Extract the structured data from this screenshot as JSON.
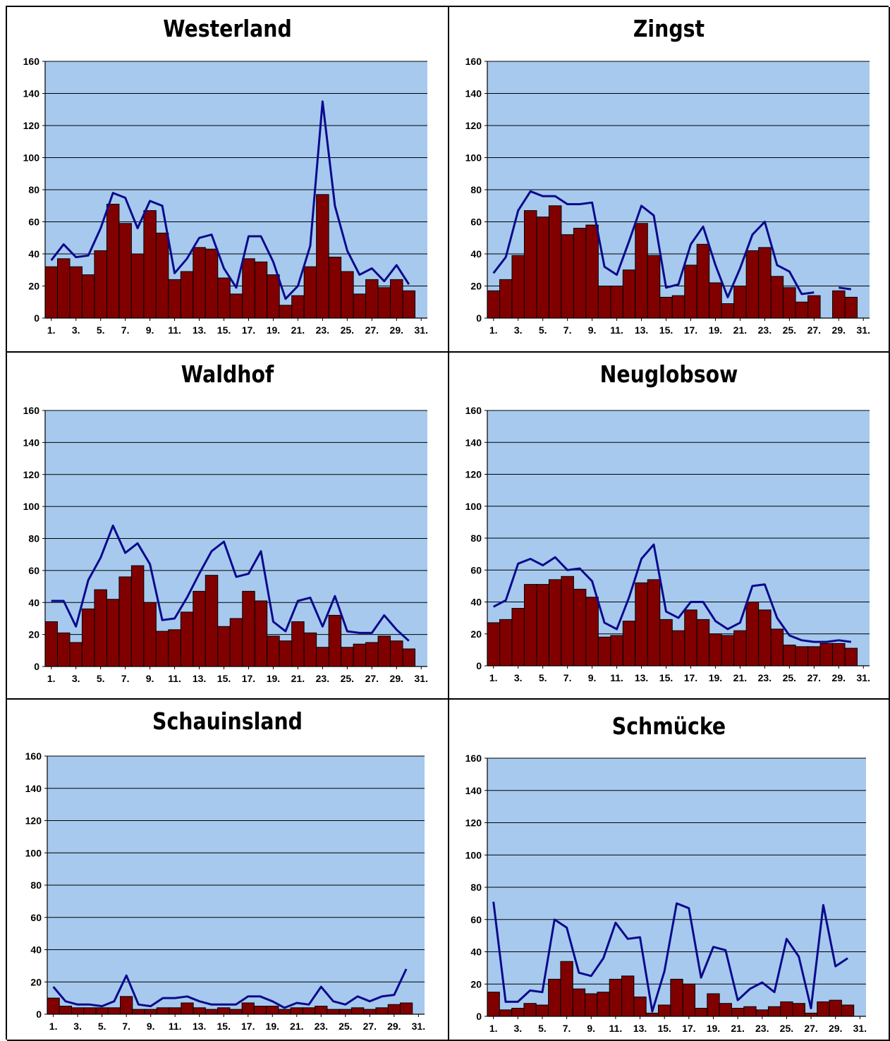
{
  "colors": {
    "plot_bg": "#a7c9ee",
    "bar": "#800000",
    "line": "#0a0a8c",
    "grid": "#000000"
  },
  "chart_data": [
    {
      "type": "bar",
      "title": "Westerland",
      "ylim": [
        0,
        160
      ],
      "yticks": [
        "0",
        "20",
        "40",
        "60",
        "80",
        "100",
        "120",
        "140",
        "160"
      ],
      "xticks": [
        "1.",
        "3.",
        "5.",
        "7.",
        "9.",
        "11.",
        "13.",
        "15.",
        "17.",
        "19.",
        "21.",
        "23.",
        "25.",
        "27.",
        "29.",
        "31."
      ],
      "grid": true,
      "legend": "none",
      "x": [
        1,
        2,
        3,
        4,
        5,
        6,
        7,
        8,
        9,
        10,
        11,
        12,
        13,
        14,
        15,
        16,
        17,
        18,
        19,
        20,
        21,
        22,
        23,
        24,
        25,
        26,
        27,
        28,
        29,
        30,
        31
      ],
      "series": [
        {
          "kind": "bar",
          "values": [
            32,
            37,
            32,
            27,
            42,
            71,
            59,
            40,
            67,
            53,
            24,
            29,
            44,
            43,
            25,
            15,
            37,
            35,
            27,
            8,
            14,
            32,
            77,
            38,
            29,
            15,
            24,
            19,
            24,
            17,
            null
          ]
        },
        {
          "kind": "line",
          "values": [
            36,
            46,
            38,
            39,
            56,
            78,
            75,
            56,
            73,
            70,
            28,
            37,
            50,
            52,
            31,
            19,
            51,
            51,
            35,
            12,
            20,
            45,
            135,
            70,
            42,
            27,
            31,
            23,
            33,
            21,
            null
          ]
        }
      ]
    },
    {
      "type": "bar",
      "title": "Zingst",
      "ylim": [
        0,
        160
      ],
      "yticks": [
        "0",
        "20",
        "40",
        "60",
        "80",
        "100",
        "120",
        "140",
        "160"
      ],
      "xticks": [
        "1.",
        "3.",
        "5.",
        "7.",
        "9.",
        "11.",
        "13.",
        "15.",
        "17.",
        "19.",
        "21.",
        "23.",
        "25.",
        "27.",
        "29.",
        "31."
      ],
      "grid": true,
      "legend": "none",
      "x": [
        1,
        2,
        3,
        4,
        5,
        6,
        7,
        8,
        9,
        10,
        11,
        12,
        13,
        14,
        15,
        16,
        17,
        18,
        19,
        20,
        21,
        22,
        23,
        24,
        25,
        26,
        27,
        28,
        29,
        30,
        31
      ],
      "series": [
        {
          "kind": "bar",
          "values": [
            17,
            24,
            39,
            67,
            63,
            70,
            52,
            56,
            58,
            20,
            20,
            30,
            59,
            39,
            13,
            14,
            33,
            46,
            22,
            9,
            20,
            42,
            44,
            26,
            19,
            10,
            14,
            null,
            17,
            13,
            null
          ]
        },
        {
          "kind": "line",
          "values": [
            28,
            38,
            67,
            79,
            76,
            76,
            71,
            71,
            72,
            32,
            27,
            48,
            70,
            64,
            19,
            21,
            46,
            57,
            33,
            13,
            31,
            52,
            60,
            33,
            29,
            15,
            16,
            null,
            19,
            18,
            null
          ]
        }
      ]
    },
    {
      "type": "bar",
      "title": "Waldhof",
      "ylim": [
        0,
        160
      ],
      "yticks": [
        "0",
        "20",
        "40",
        "60",
        "80",
        "100",
        "120",
        "140",
        "160"
      ],
      "xticks": [
        "1.",
        "3.",
        "5.",
        "7.",
        "9.",
        "11.",
        "13.",
        "15.",
        "17.",
        "19.",
        "21.",
        "23.",
        "25.",
        "27.",
        "29.",
        "31."
      ],
      "grid": true,
      "legend": "none",
      "x": [
        1,
        2,
        3,
        4,
        5,
        6,
        7,
        8,
        9,
        10,
        11,
        12,
        13,
        14,
        15,
        16,
        17,
        18,
        19,
        20,
        21,
        22,
        23,
        24,
        25,
        26,
        27,
        28,
        29,
        30,
        31
      ],
      "series": [
        {
          "kind": "bar",
          "values": [
            28,
            21,
            15,
            36,
            48,
            42,
            56,
            63,
            40,
            22,
            23,
            34,
            47,
            57,
            25,
            30,
            47,
            41,
            19,
            16,
            28,
            21,
            12,
            32,
            12,
            14,
            15,
            19,
            16,
            11,
            null
          ]
        },
        {
          "kind": "line",
          "values": [
            41,
            41,
            25,
            54,
            68,
            88,
            71,
            77,
            64,
            29,
            30,
            43,
            58,
            72,
            78,
            56,
            58,
            72,
            28,
            22,
            41,
            43,
            25,
            44,
            22,
            21,
            21,
            32,
            23,
            16,
            null
          ]
        }
      ]
    },
    {
      "type": "bar",
      "title": "Neuglobsow",
      "ylim": [
        0,
        160
      ],
      "yticks": [
        "0",
        "20",
        "40",
        "60",
        "80",
        "100",
        "120",
        "140",
        "160"
      ],
      "xticks": [
        "1.",
        "3.",
        "5.",
        "7.",
        "9.",
        "11.",
        "13.",
        "15.",
        "17.",
        "19.",
        "21.",
        "23.",
        "25.",
        "27.",
        "29.",
        "31."
      ],
      "grid": true,
      "legend": "none",
      "x": [
        1,
        2,
        3,
        4,
        5,
        6,
        7,
        8,
        9,
        10,
        11,
        12,
        13,
        14,
        15,
        16,
        17,
        18,
        19,
        20,
        21,
        22,
        23,
        24,
        25,
        26,
        27,
        28,
        29,
        30,
        31
      ],
      "series": [
        {
          "kind": "bar",
          "values": [
            27,
            29,
            36,
            51,
            51,
            54,
            56,
            48,
            43,
            18,
            19,
            28,
            52,
            54,
            29,
            22,
            35,
            29,
            20,
            19,
            22,
            40,
            35,
            23,
            13,
            12,
            12,
            14,
            14,
            11,
            null
          ]
        },
        {
          "kind": "line",
          "values": [
            37,
            41,
            64,
            67,
            63,
            68,
            60,
            61,
            53,
            27,
            23,
            43,
            67,
            76,
            34,
            30,
            40,
            40,
            28,
            23,
            27,
            50,
            51,
            30,
            19,
            16,
            15,
            15,
            16,
            15,
            null
          ]
        }
      ]
    },
    {
      "type": "bar",
      "title": "Schauinsland",
      "ylim": [
        0,
        160
      ],
      "yticks": [
        "0",
        "20",
        "40",
        "60",
        "80",
        "100",
        "120",
        "140",
        "160"
      ],
      "xticks": [
        "1.",
        "3.",
        "5.",
        "7.",
        "9.",
        "11.",
        "13.",
        "15.",
        "17.",
        "19.",
        "21.",
        "23.",
        "25.",
        "27.",
        "29.",
        "31."
      ],
      "grid": true,
      "legend": "none",
      "x": [
        1,
        2,
        3,
        4,
        5,
        6,
        7,
        8,
        9,
        10,
        11,
        12,
        13,
        14,
        15,
        16,
        17,
        18,
        19,
        20,
        21,
        22,
        23,
        24,
        25,
        26,
        27,
        28,
        29,
        30,
        31
      ],
      "series": [
        {
          "kind": "bar",
          "values": [
            10,
            5,
            4,
            4,
            4,
            4,
            11,
            3,
            3,
            4,
            4,
            7,
            4,
            3,
            4,
            3,
            7,
            5,
            5,
            3,
            4,
            4,
            5,
            3,
            3,
            4,
            3,
            4,
            6,
            7,
            null
          ]
        },
        {
          "kind": "line",
          "values": [
            17,
            8,
            6,
            6,
            5,
            8,
            24,
            6,
            5,
            10,
            10,
            11,
            8,
            6,
            6,
            6,
            11,
            11,
            8,
            4,
            7,
            6,
            17,
            8,
            6,
            11,
            8,
            11,
            12,
            28,
            null
          ]
        }
      ]
    },
    {
      "type": "bar",
      "title": "Schmücke",
      "ylim": [
        0,
        160
      ],
      "yticks": [
        "0",
        "20",
        "40",
        "60",
        "80",
        "100",
        "120",
        "140",
        "160"
      ],
      "xticks": [
        "1.",
        "3.",
        "5.",
        "7.",
        "9.",
        "11.",
        "13.",
        "15.",
        "17.",
        "19.",
        "21.",
        "23.",
        "25.",
        "27.",
        "29.",
        "31."
      ],
      "grid": true,
      "legend": "none",
      "x": [
        1,
        2,
        3,
        4,
        5,
        6,
        7,
        8,
        9,
        10,
        11,
        12,
        13,
        14,
        15,
        16,
        17,
        18,
        19,
        20,
        21,
        22,
        23,
        24,
        25,
        26,
        27,
        28,
        29,
        30,
        31
      ],
      "series": [
        {
          "kind": "bar",
          "values": [
            15,
            4,
            5,
            8,
            7,
            23,
            34,
            17,
            14,
            15,
            23,
            25,
            12,
            2,
            7,
            23,
            20,
            5,
            14,
            8,
            5,
            6,
            4,
            6,
            9,
            8,
            2,
            9,
            10,
            7,
            null
          ]
        },
        {
          "kind": "line",
          "values": [
            71,
            9,
            9,
            16,
            15,
            60,
            55,
            27,
            25,
            36,
            58,
            48,
            49,
            3,
            28,
            70,
            67,
            24,
            43,
            41,
            10,
            17,
            21,
            15,
            48,
            37,
            5,
            69,
            31,
            36,
            null
          ]
        }
      ]
    }
  ]
}
